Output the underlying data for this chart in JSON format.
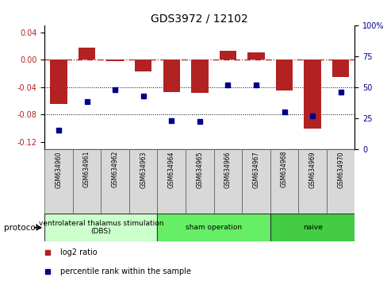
{
  "title": "GDS3972 / 12102",
  "samples": [
    "GSM634960",
    "GSM634961",
    "GSM634962",
    "GSM634963",
    "GSM634964",
    "GSM634965",
    "GSM634966",
    "GSM634967",
    "GSM634968",
    "GSM634969",
    "GSM634970"
  ],
  "log2_ratio": [
    -0.065,
    0.018,
    -0.002,
    -0.017,
    -0.047,
    -0.048,
    0.013,
    0.01,
    -0.045,
    -0.1,
    -0.025
  ],
  "percentile_rank": [
    15,
    38,
    48,
    43,
    23,
    22,
    52,
    52,
    30,
    27,
    46
  ],
  "bar_color": "#b22222",
  "dot_color": "#00008b",
  "ylim_left": [
    -0.13,
    0.05
  ],
  "ylim_right": [
    0,
    100
  ],
  "yticks_left": [
    0.04,
    0.0,
    -0.04,
    -0.08,
    -0.12
  ],
  "yticks_right": [
    100,
    75,
    50,
    25,
    0
  ],
  "dotted_lines": [
    -0.04,
    -0.08
  ],
  "protocol_groups": [
    {
      "label": "ventrolateral thalamus stimulation\n(DBS)",
      "start": 0,
      "end": 3,
      "color": "#ccffcc"
    },
    {
      "label": "sham operation",
      "start": 4,
      "end": 7,
      "color": "#66ee66"
    },
    {
      "label": "naive",
      "start": 8,
      "end": 10,
      "color": "#44cc44"
    }
  ],
  "legend_items": [
    {
      "color": "#b22222",
      "label": "log2 ratio"
    },
    {
      "color": "#00008b",
      "label": "percentile rank within the sample"
    }
  ],
  "protocol_label": "protocol"
}
